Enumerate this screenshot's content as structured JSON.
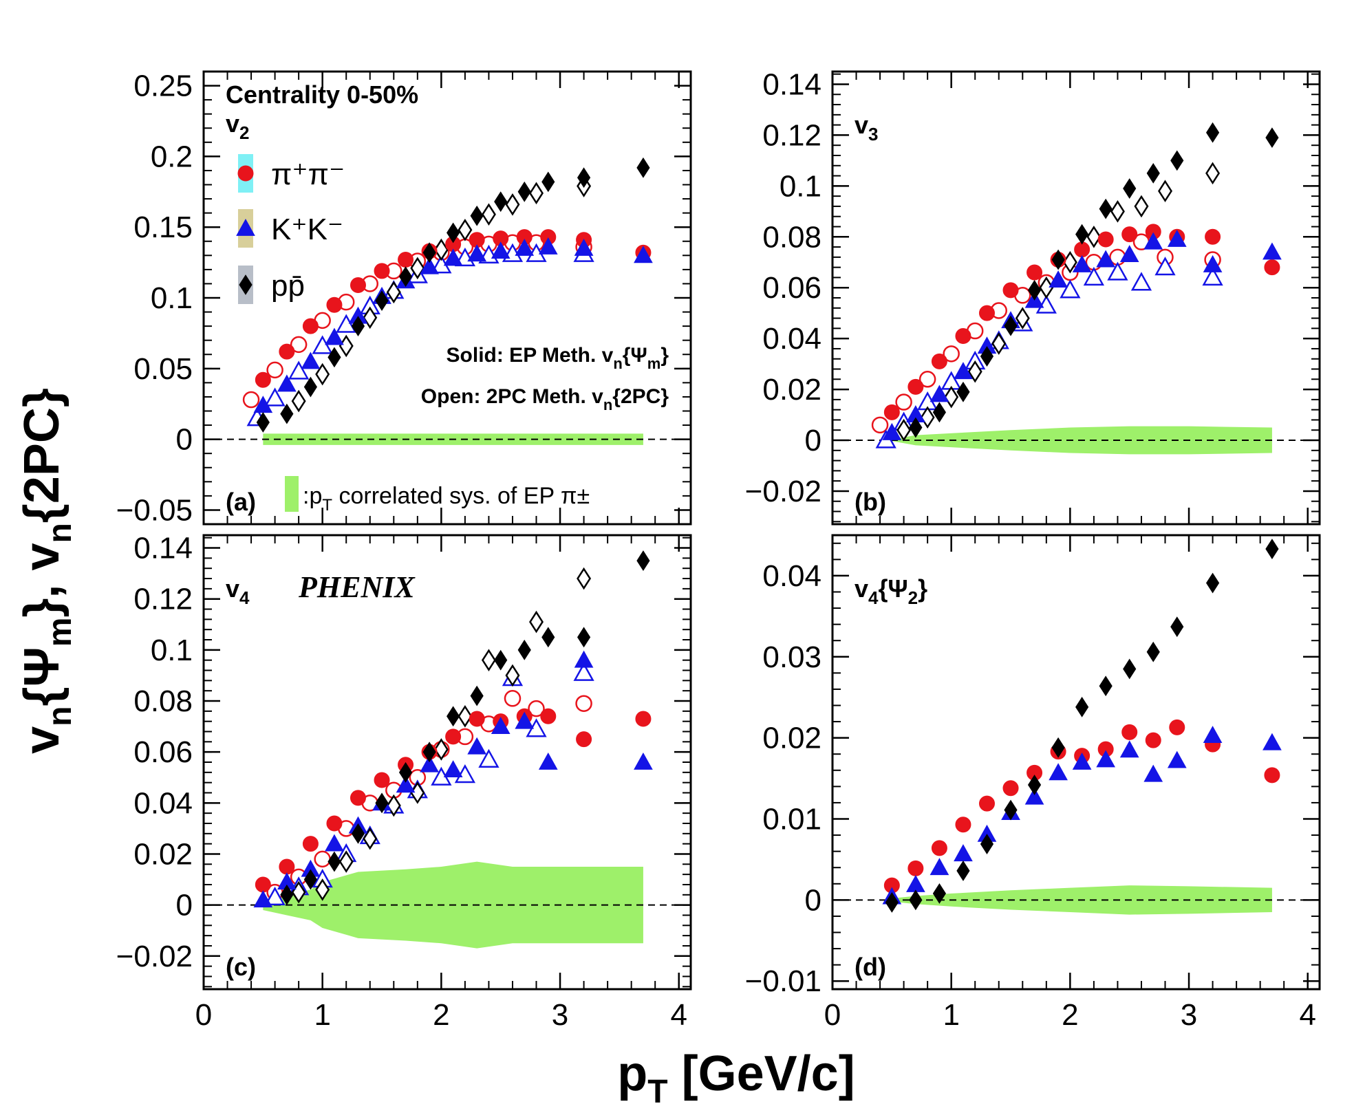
{
  "chart_data": [
    {
      "type": "scatter",
      "panel_tag": "(a)",
      "panel_label": "v_2",
      "xlim": [
        0,
        4.1
      ],
      "ylim": [
        -0.06,
        0.26
      ],
      "yticks": [
        -0.05,
        0,
        0.05,
        0.1,
        0.15,
        0.2,
        0.25
      ],
      "ytick_labels": [
        "−0.05",
        "0",
        "0.05",
        "0.1",
        "0.15",
        "0.2",
        "0.25"
      ],
      "header": "Centrality 0-50%",
      "legend": {
        "placement": "top-left",
        "entries": [
          "π⁺π⁻",
          "K⁺K⁻",
          "pp̄"
        ]
      },
      "notes": [
        "Solid: EP Meth. v_n{Ψ_m}",
        "Open: 2PC Meth. v_n{2PC}"
      ],
      "band_label": ":p_T correlated sys. of EP π±",
      "band": {
        "x": [
          0.5,
          3.7
        ],
        "half_width": [
          0.004,
          0.004
        ]
      },
      "series": [
        {
          "name": "π⁺π⁻",
          "method": "EP",
          "marker": "circle",
          "filled": true,
          "color": "#e8141c",
          "x": [
            0.5,
            0.7,
            0.9,
            1.1,
            1.3,
            1.5,
            1.7,
            1.9,
            2.1,
            2.3,
            2.5,
            2.7,
            2.9,
            3.2,
            3.7
          ],
          "y": [
            0.042,
            0.062,
            0.08,
            0.095,
            0.109,
            0.119,
            0.127,
            0.133,
            0.138,
            0.141,
            0.142,
            0.143,
            0.143,
            0.141,
            0.132
          ]
        },
        {
          "name": "π⁺π⁻",
          "method": "2PC",
          "marker": "circle",
          "filled": false,
          "color": "#e8141c",
          "x": [
            0.4,
            0.6,
            0.8,
            1.0,
            1.2,
            1.4,
            1.6,
            1.8,
            2.0,
            2.2,
            2.4,
            2.6,
            2.8,
            3.2
          ],
          "y": [
            0.028,
            0.049,
            0.067,
            0.084,
            0.097,
            0.11,
            0.119,
            0.126,
            0.132,
            0.136,
            0.138,
            0.139,
            0.139,
            0.136
          ]
        },
        {
          "name": "K⁺K⁻",
          "method": "EP",
          "marker": "triangle",
          "filled": true,
          "color": "#1414e6",
          "x": [
            0.5,
            0.7,
            0.9,
            1.1,
            1.3,
            1.5,
            1.7,
            1.9,
            2.1,
            2.3,
            2.5,
            2.7,
            2.9,
            3.2,
            3.7
          ],
          "y": [
            0.024,
            0.039,
            0.055,
            0.072,
            0.087,
            0.101,
            0.112,
            0.122,
            0.128,
            0.131,
            0.133,
            0.135,
            0.136,
            0.135,
            0.13
          ]
        },
        {
          "name": "K⁺K⁻",
          "method": "2PC",
          "marker": "triangle",
          "filled": false,
          "color": "#1414e6",
          "x": [
            0.45,
            0.6,
            0.8,
            1.0,
            1.2,
            1.4,
            1.6,
            1.8,
            2.0,
            2.2,
            2.4,
            2.6,
            2.8,
            3.2
          ],
          "y": [
            0.015,
            0.029,
            0.048,
            0.066,
            0.081,
            0.094,
            0.105,
            0.116,
            0.123,
            0.128,
            0.13,
            0.131,
            0.131,
            0.131
          ]
        },
        {
          "name": "pp̄",
          "method": "EP",
          "marker": "diamond",
          "filled": true,
          "color": "#000000",
          "x": [
            0.5,
            0.7,
            0.9,
            1.1,
            1.3,
            1.5,
            1.7,
            1.9,
            2.1,
            2.3,
            2.5,
            2.7,
            2.9,
            3.2,
            3.7
          ],
          "y": [
            0.012,
            0.018,
            0.037,
            0.058,
            0.08,
            0.098,
            0.115,
            0.132,
            0.146,
            0.158,
            0.168,
            0.175,
            0.182,
            0.185,
            0.192
          ]
        },
        {
          "name": "pp̄",
          "method": "2PC",
          "marker": "diamond",
          "filled": false,
          "color": "#000000",
          "x": [
            0.8,
            1.0,
            1.2,
            1.4,
            1.6,
            1.8,
            2.0,
            2.2,
            2.4,
            2.6,
            2.8,
            3.2
          ],
          "y": [
            0.027,
            0.046,
            0.066,
            0.086,
            0.104,
            0.121,
            0.134,
            0.148,
            0.159,
            0.166,
            0.174,
            0.179
          ]
        }
      ]
    },
    {
      "type": "scatter",
      "panel_tag": "(b)",
      "panel_label": "v_3",
      "xlim": [
        0,
        4.1
      ],
      "ylim": [
        -0.033,
        0.145
      ],
      "yticks": [
        -0.02,
        0,
        0.02,
        0.04,
        0.06,
        0.08,
        0.1,
        0.12,
        0.14
      ],
      "ytick_labels": [
        "−0.02",
        "0",
        "0.02",
        "0.04",
        "0.06",
        "0.08",
        "0.1",
        "0.12",
        "0.14"
      ],
      "band": {
        "x": [
          0.5,
          0.7,
          1.1,
          1.5,
          2.0,
          2.5,
          3.0,
          3.7
        ],
        "half_width": [
          0.0003,
          0.002,
          0.003,
          0.004,
          0.005,
          0.0055,
          0.0055,
          0.005
        ]
      },
      "series": [
        {
          "name": "π⁺π⁻",
          "method": "EP",
          "marker": "circle",
          "filled": true,
          "color": "#e8141c",
          "x": [
            0.5,
            0.7,
            0.9,
            1.1,
            1.3,
            1.5,
            1.7,
            1.9,
            2.1,
            2.3,
            2.5,
            2.7,
            2.9,
            3.2,
            3.7
          ],
          "y": [
            0.011,
            0.021,
            0.031,
            0.041,
            0.05,
            0.059,
            0.066,
            0.071,
            0.075,
            0.079,
            0.081,
            0.082,
            0.08,
            0.08,
            0.068
          ]
        },
        {
          "name": "π⁺π⁻",
          "method": "2PC",
          "marker": "circle",
          "filled": false,
          "color": "#e8141c",
          "x": [
            0.4,
            0.6,
            0.8,
            1.0,
            1.2,
            1.4,
            1.6,
            1.8,
            2.0,
            2.2,
            2.4,
            2.6,
            2.8,
            3.2
          ],
          "y": [
            0.006,
            0.015,
            0.024,
            0.034,
            0.043,
            0.051,
            0.057,
            0.062,
            0.066,
            0.07,
            0.072,
            0.078,
            0.072,
            0.071
          ]
        },
        {
          "name": "K⁺K⁻",
          "method": "EP",
          "marker": "triangle",
          "filled": true,
          "color": "#1414e6",
          "x": [
            0.5,
            0.7,
            0.9,
            1.1,
            1.3,
            1.5,
            1.7,
            1.9,
            2.1,
            2.3,
            2.5,
            2.7,
            2.9,
            3.2,
            3.7
          ],
          "y": [
            0.003,
            0.01,
            0.018,
            0.027,
            0.037,
            0.047,
            0.055,
            0.063,
            0.069,
            0.071,
            0.073,
            0.078,
            0.079,
            0.069,
            0.074
          ]
        },
        {
          "name": "K⁺K⁻",
          "method": "2PC",
          "marker": "triangle",
          "filled": false,
          "color": "#1414e6",
          "x": [
            0.45,
            0.6,
            0.8,
            1.0,
            1.2,
            1.4,
            1.6,
            1.8,
            2.0,
            2.2,
            2.4,
            2.6,
            2.8,
            3.2
          ],
          "y": [
            0.0,
            0.007,
            0.015,
            0.023,
            0.031,
            0.039,
            0.046,
            0.053,
            0.059,
            0.064,
            0.066,
            0.062,
            0.068,
            0.064
          ]
        },
        {
          "name": "pp̄",
          "method": "EP",
          "marker": "diamond",
          "filled": true,
          "color": "#000000",
          "x": [
            0.7,
            0.9,
            1.1,
            1.3,
            1.5,
            1.7,
            1.9,
            2.1,
            2.3,
            2.5,
            2.7,
            2.9,
            3.2,
            3.7
          ],
          "y": [
            0.005,
            0.011,
            0.019,
            0.033,
            0.045,
            0.059,
            0.071,
            0.081,
            0.091,
            0.099,
            0.105,
            0.11,
            0.121,
            0.119
          ]
        },
        {
          "name": "pp̄",
          "method": "2PC",
          "marker": "diamond",
          "filled": false,
          "color": "#000000",
          "x": [
            0.6,
            0.8,
            1.0,
            1.2,
            1.4,
            1.6,
            1.8,
            2.0,
            2.2,
            2.4,
            2.6,
            2.8,
            3.2
          ],
          "y": [
            0.004,
            0.009,
            0.017,
            0.027,
            0.038,
            0.048,
            0.06,
            0.07,
            0.08,
            0.09,
            0.092,
            0.098,
            0.105
          ]
        }
      ]
    },
    {
      "type": "scatter",
      "panel_tag": "(c)",
      "panel_label": "v_4",
      "experiment": "PHENIX",
      "xlim": [
        0,
        4.1
      ],
      "ylim": [
        -0.033,
        0.145
      ],
      "yticks": [
        -0.02,
        0,
        0.02,
        0.04,
        0.06,
        0.08,
        0.1,
        0.12,
        0.14
      ],
      "ytick_labels": [
        "−0.02",
        "0",
        "0.02",
        "0.04",
        "0.06",
        "0.08",
        "0.1",
        "0.12",
        "0.14"
      ],
      "band": {
        "x": [
          0.5,
          0.7,
          0.9,
          1.0,
          1.3,
          1.7,
          2.0,
          2.3,
          2.6,
          3.0,
          3.7
        ],
        "half_width": [
          0.002,
          0.004,
          0.006,
          0.009,
          0.013,
          0.014,
          0.015,
          0.017,
          0.015,
          0.015,
          0.015
        ]
      },
      "series": [
        {
          "name": "π⁺π⁻",
          "method": "EP",
          "marker": "circle",
          "filled": true,
          "color": "#e8141c",
          "x": [
            0.5,
            0.7,
            0.9,
            1.1,
            1.3,
            1.5,
            1.7,
            1.9,
            2.1,
            2.3,
            2.5,
            2.7,
            2.9,
            3.2,
            3.7
          ],
          "y": [
            0.008,
            0.015,
            0.024,
            0.032,
            0.042,
            0.049,
            0.055,
            0.06,
            0.066,
            0.073,
            0.072,
            0.074,
            0.074,
            0.065,
            0.073
          ]
        },
        {
          "name": "π⁺π⁻",
          "method": "2PC",
          "marker": "circle",
          "filled": false,
          "color": "#e8141c",
          "x": [
            0.6,
            0.8,
            1.0,
            1.2,
            1.4,
            1.6,
            1.8,
            2.0,
            2.2,
            2.4,
            2.6,
            2.8,
            3.2
          ],
          "y": [
            0.005,
            0.011,
            0.018,
            0.03,
            0.04,
            0.045,
            0.05,
            0.061,
            0.066,
            0.071,
            0.081,
            0.077,
            0.079
          ]
        },
        {
          "name": "K⁺K⁻",
          "method": "EP",
          "marker": "triangle",
          "filled": true,
          "color": "#1414e6",
          "x": [
            0.5,
            0.7,
            0.9,
            1.1,
            1.3,
            1.5,
            1.7,
            1.9,
            2.1,
            2.3,
            2.5,
            2.7,
            2.9,
            3.2,
            3.7
          ],
          "y": [
            0.002,
            0.009,
            0.014,
            0.024,
            0.031,
            0.04,
            0.047,
            0.055,
            0.053,
            0.062,
            0.07,
            0.072,
            0.056,
            0.096,
            0.056
          ]
        },
        {
          "name": "K⁺K⁻",
          "method": "2PC",
          "marker": "triangle",
          "filled": false,
          "color": "#1414e6",
          "x": [
            0.6,
            0.8,
            1.0,
            1.2,
            1.4,
            1.6,
            1.8,
            2.0,
            2.2,
            2.4,
            2.6,
            2.8,
            3.2
          ],
          "y": [
            0.003,
            0.007,
            0.01,
            0.02,
            0.027,
            0.039,
            0.045,
            0.05,
            0.051,
            0.057,
            0.089,
            0.069,
            0.091
          ]
        },
        {
          "name": "pp̄",
          "method": "EP",
          "marker": "diamond",
          "filled": true,
          "color": "#000000",
          "x": [
            0.7,
            0.9,
            1.1,
            1.3,
            1.5,
            1.7,
            1.9,
            2.1,
            2.3,
            2.5,
            2.7,
            2.9,
            3.2,
            3.7
          ],
          "y": [
            0.004,
            0.01,
            0.017,
            0.028,
            0.04,
            0.052,
            0.06,
            0.074,
            0.082,
            0.096,
            0.1,
            0.105,
            0.105,
            0.135
          ]
        },
        {
          "name": "pp̄",
          "method": "2PC",
          "marker": "diamond",
          "filled": false,
          "color": "#000000",
          "x": [
            0.8,
            1.0,
            1.2,
            1.4,
            1.6,
            1.8,
            2.0,
            2.2,
            2.4,
            2.6,
            2.8,
            3.2
          ],
          "y": [
            0.005,
            0.006,
            0.017,
            0.026,
            0.039,
            0.044,
            0.061,
            0.074,
            0.096,
            0.09,
            0.111,
            0.128
          ]
        }
      ]
    },
    {
      "type": "scatter",
      "panel_tag": "(d)",
      "panel_label": "v_4{Ψ_2}",
      "xlim": [
        0,
        4.1
      ],
      "ylim": [
        -0.011,
        0.045
      ],
      "yticks": [
        -0.01,
        0,
        0.01,
        0.02,
        0.03,
        0.04
      ],
      "ytick_labels": [
        "−0.01",
        "0",
        "0.01",
        "0.02",
        "0.03",
        "0.04"
      ],
      "band": {
        "x": [
          0.5,
          0.7,
          1.0,
          1.5,
          2.0,
          2.5,
          3.0,
          3.7
        ],
        "half_width": [
          0.0002,
          0.0005,
          0.0008,
          0.0012,
          0.0015,
          0.0018,
          0.0017,
          0.0015
        ]
      },
      "series": [
        {
          "name": "π⁺π⁻",
          "method": "EP",
          "marker": "circle",
          "filled": true,
          "color": "#e8141c",
          "x": [
            0.5,
            0.7,
            0.9,
            1.1,
            1.3,
            1.5,
            1.7,
            1.9,
            2.1,
            2.3,
            2.5,
            2.7,
            2.9,
            3.2,
            3.7
          ],
          "y": [
            0.0018,
            0.0039,
            0.0064,
            0.0093,
            0.0119,
            0.0138,
            0.0157,
            0.0183,
            0.0178,
            0.0186,
            0.0207,
            0.0197,
            0.0213,
            0.0192,
            0.0154
          ]
        },
        {
          "name": "K⁺K⁻",
          "method": "EP",
          "marker": "triangle",
          "filled": true,
          "color": "#1414e6",
          "x": [
            0.5,
            0.7,
            0.9,
            1.1,
            1.3,
            1.5,
            1.7,
            1.9,
            2.1,
            2.3,
            2.5,
            2.7,
            2.9,
            3.2,
            3.7
          ],
          "y": [
            0.0004,
            0.0019,
            0.004,
            0.0057,
            0.0081,
            0.0108,
            0.0127,
            0.0157,
            0.017,
            0.0173,
            0.0185,
            0.0155,
            0.0172,
            0.0203,
            0.0194
          ]
        },
        {
          "name": "pp̄",
          "method": "EP",
          "marker": "diamond",
          "filled": true,
          "color": "#000000",
          "x": [
            0.5,
            0.7,
            0.9,
            1.1,
            1.3,
            1.5,
            1.7,
            1.9,
            2.1,
            2.3,
            2.5,
            2.7,
            2.9,
            3.2,
            3.7
          ],
          "y": [
            -0.0003,
            0.0,
            0.0008,
            0.0036,
            0.0069,
            0.0111,
            0.0142,
            0.0188,
            0.0238,
            0.0264,
            0.0285,
            0.0306,
            0.0337,
            0.0391,
            0.0433
          ]
        }
      ]
    }
  ],
  "xaxis": {
    "ticks": [
      0,
      1,
      2,
      3,
      4
    ],
    "tick_labels": [
      "0",
      "1",
      "2",
      "3",
      "4"
    ]
  },
  "xlabel": "p_T [GeV/c]",
  "ylabel": "v_n{Ψ_m}, v_n{2PC}",
  "colors": {
    "pion": "#e8141c",
    "kaon": "#1414e6",
    "proton": "#000000",
    "band": "#9ef06a"
  }
}
